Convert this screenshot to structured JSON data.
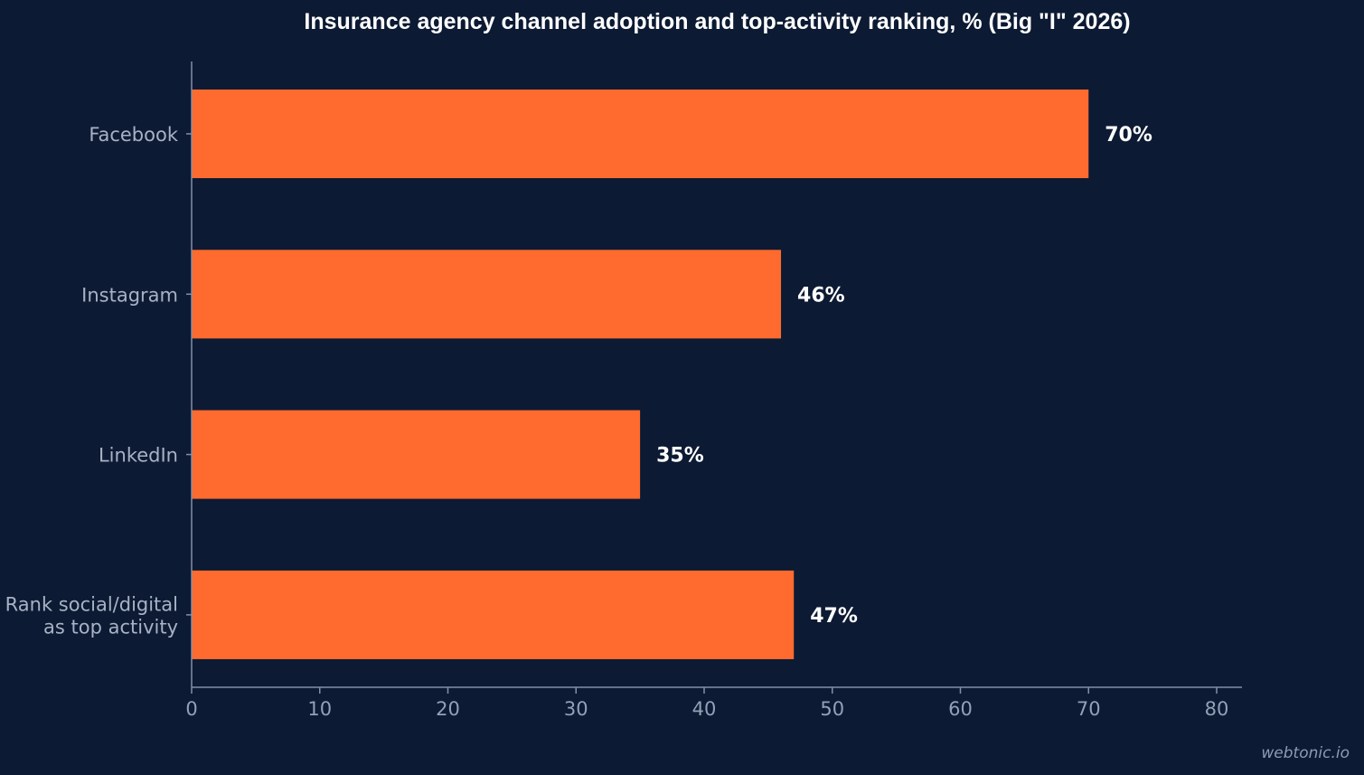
{
  "chart_data": {
    "type": "bar",
    "orientation": "horizontal",
    "title": "Insurance agency channel adoption and top-activity ranking, % (Big \"I\" 2026)",
    "categories": [
      [
        "Facebook"
      ],
      [
        "Instagram"
      ],
      [
        "LinkedIn"
      ],
      [
        "Rank social/digital",
        "as top activity"
      ]
    ],
    "values": [
      70,
      46,
      35,
      47
    ],
    "data_labels": [
      "70%",
      "46%",
      "35%",
      "47%"
    ],
    "xlim": [
      0,
      80
    ],
    "x_ticks": [
      0,
      10,
      20,
      30,
      40,
      50,
      60,
      70,
      80
    ],
    "xlabel": "",
    "ylabel": "",
    "grid": false,
    "legend": "none",
    "bar_color": "#ff6b2e"
  },
  "watermark": "webtonic.io",
  "colors": {
    "background": "#0c1a33",
    "bar": "#ff6b2e",
    "axis": "#8390a8",
    "title": "#ffffff"
  }
}
